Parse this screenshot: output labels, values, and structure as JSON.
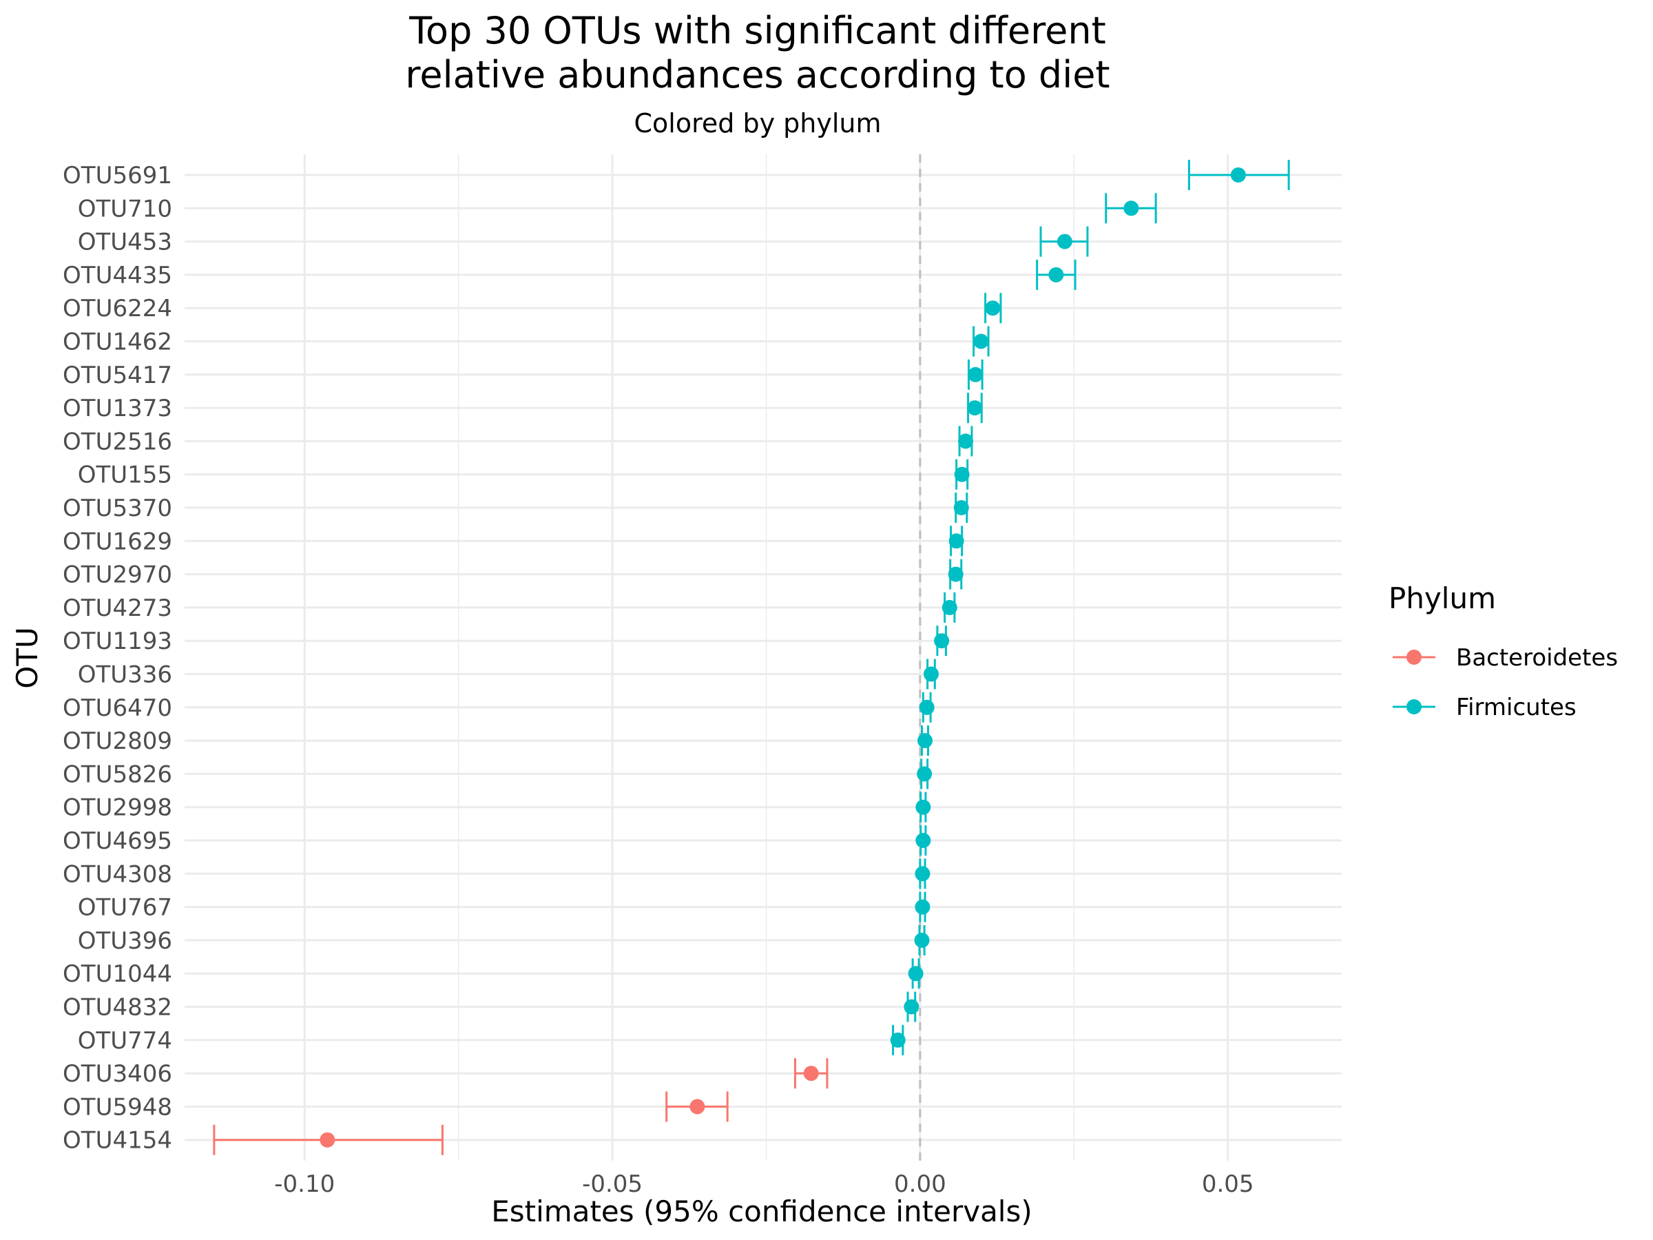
{
  "chart_data": {
    "type": "scatter",
    "title_line1": "Top 30 OTUs with significant different",
    "title_line2": "relative abundances according to diet",
    "subtitle": "Colored by phylum",
    "xlabel": "Estimates (95% confidence intervals)",
    "ylabel": "OTU",
    "xlim": [
      -0.1195,
      0.0685
    ],
    "xticks": [
      -0.1,
      -0.05,
      0.0,
      0.05
    ],
    "xtick_labels": [
      "-0.10",
      "-0.05",
      "0.00",
      "0.05"
    ],
    "reference_line_x": 0,
    "grid": true,
    "legend": {
      "title": "Phylum",
      "position": "right",
      "entries": [
        {
          "label": "Bacteroidetes",
          "color": "#F8766D"
        },
        {
          "label": "Firmicutes",
          "color": "#00BFC4"
        }
      ]
    },
    "points": [
      {
        "otu": "OTU5691",
        "phylum": "Firmicutes",
        "estimate": 0.0517,
        "lower": 0.0437,
        "upper": 0.0599
      },
      {
        "otu": "OTU710",
        "phylum": "Firmicutes",
        "estimate": 0.0343,
        "lower": 0.0302,
        "upper": 0.0383
      },
      {
        "otu": "OTU453",
        "phylum": "Firmicutes",
        "estimate": 0.0235,
        "lower": 0.0196,
        "upper": 0.0272
      },
      {
        "otu": "OTU4435",
        "phylum": "Firmicutes",
        "estimate": 0.0221,
        "lower": 0.019,
        "upper": 0.0252
      },
      {
        "otu": "OTU6224",
        "phylum": "Firmicutes",
        "estimate": 0.0118,
        "lower": 0.0106,
        "upper": 0.0131
      },
      {
        "otu": "OTU1462",
        "phylum": "Firmicutes",
        "estimate": 0.0099,
        "lower": 0.0087,
        "upper": 0.0111
      },
      {
        "otu": "OTU5417",
        "phylum": "Firmicutes",
        "estimate": 0.009,
        "lower": 0.0079,
        "upper": 0.0101
      },
      {
        "otu": "OTU1373",
        "phylum": "Firmicutes",
        "estimate": 0.0089,
        "lower": 0.0078,
        "upper": 0.01
      },
      {
        "otu": "OTU2516",
        "phylum": "Firmicutes",
        "estimate": 0.0074,
        "lower": 0.0064,
        "upper": 0.0084
      },
      {
        "otu": "OTU155",
        "phylum": "Firmicutes",
        "estimate": 0.0068,
        "lower": 0.0059,
        "upper": 0.0077
      },
      {
        "otu": "OTU5370",
        "phylum": "Firmicutes",
        "estimate": 0.0067,
        "lower": 0.0058,
        "upper": 0.0076
      },
      {
        "otu": "OTU1629",
        "phylum": "Firmicutes",
        "estimate": 0.0059,
        "lower": 0.005,
        "upper": 0.0068
      },
      {
        "otu": "OTU2970",
        "phylum": "Firmicutes",
        "estimate": 0.0058,
        "lower": 0.0049,
        "upper": 0.0067
      },
      {
        "otu": "OTU4273",
        "phylum": "Firmicutes",
        "estimate": 0.0048,
        "lower": 0.004,
        "upper": 0.0056
      },
      {
        "otu": "OTU1193",
        "phylum": "Firmicutes",
        "estimate": 0.0035,
        "lower": 0.0028,
        "upper": 0.0042
      },
      {
        "otu": "OTU336",
        "phylum": "Firmicutes",
        "estimate": 0.0018,
        "lower": 0.0012,
        "upper": 0.0024
      },
      {
        "otu": "OTU6470",
        "phylum": "Firmicutes",
        "estimate": 0.0011,
        "lower": 0.0005,
        "upper": 0.0017
      },
      {
        "otu": "OTU2809",
        "phylum": "Firmicutes",
        "estimate": 0.0008,
        "lower": 0.0003,
        "upper": 0.0013
      },
      {
        "otu": "OTU5826",
        "phylum": "Firmicutes",
        "estimate": 0.0007,
        "lower": 0.0002,
        "upper": 0.0012
      },
      {
        "otu": "OTU2998",
        "phylum": "Firmicutes",
        "estimate": 0.0005,
        "lower": 0.0001,
        "upper": 0.0009
      },
      {
        "otu": "OTU4695",
        "phylum": "Firmicutes",
        "estimate": 0.0005,
        "lower": 0.0001,
        "upper": 0.0009
      },
      {
        "otu": "OTU4308",
        "phylum": "Firmicutes",
        "estimate": 0.0004,
        "lower": 0.0,
        "upper": 0.0008
      },
      {
        "otu": "OTU767",
        "phylum": "Firmicutes",
        "estimate": 0.0004,
        "lower": 0.0,
        "upper": 0.0008
      },
      {
        "otu": "OTU396",
        "phylum": "Firmicutes",
        "estimate": 0.0003,
        "lower": -0.0001,
        "upper": 0.0007
      },
      {
        "otu": "OTU1044",
        "phylum": "Firmicutes",
        "estimate": -0.0007,
        "lower": -0.0012,
        "upper": -0.0002
      },
      {
        "otu": "OTU4832",
        "phylum": "Firmicutes",
        "estimate": -0.0014,
        "lower": -0.002,
        "upper": -0.0008
      },
      {
        "otu": "OTU774",
        "phylum": "Firmicutes",
        "estimate": -0.0036,
        "lower": -0.0044,
        "upper": -0.0028
      },
      {
        "otu": "OTU3406",
        "phylum": "Bacteroidetes",
        "estimate": -0.0177,
        "lower": -0.0203,
        "upper": -0.0151
      },
      {
        "otu": "OTU5948",
        "phylum": "Bacteroidetes",
        "estimate": -0.0362,
        "lower": -0.0412,
        "upper": -0.0313
      },
      {
        "otu": "OTU4154",
        "phylum": "Bacteroidetes",
        "estimate": -0.0963,
        "lower": -0.1147,
        "upper": -0.0776
      }
    ]
  }
}
